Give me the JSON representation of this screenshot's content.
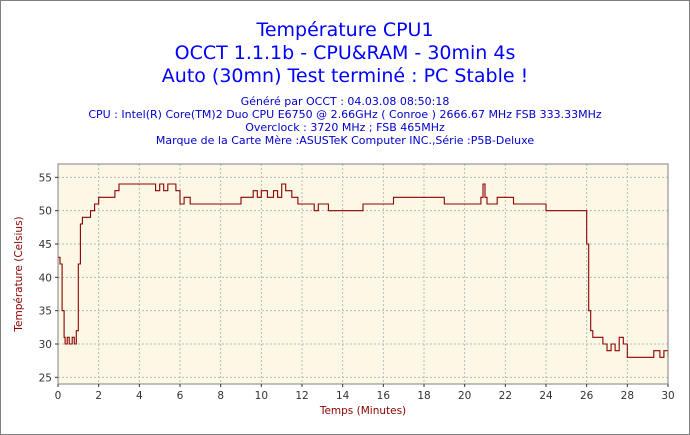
{
  "colors": {
    "title": "#0000ff",
    "info": "#0000cc",
    "plot_background": "#fdf8e6",
    "grid": "#b8b8b8",
    "series": "#8b0000",
    "axis_title": "#8b0000"
  },
  "header": {
    "title_lines": [
      "Température CPU1",
      "OCCT 1.1.1b - CPU&RAM - 30min 4s",
      "Auto (30mn) Test terminé : PC Stable !"
    ],
    "info_lines": [
      "Généré par OCCT : 04.03.08 08:50:18",
      "CPU : Intel(R) Core(TM)2 Duo CPU E6750 @ 2.66GHz ( Conroe ) 2666.67 MHz FSB 333.33MHz",
      "Overclock : 3720 MHz ; FSB 465MHz",
      "Marque de la Carte Mère :ASUSTeK Computer INC.,Série :P5B-Deluxe"
    ]
  },
  "chart_data": {
    "type": "line",
    "xlabel": "Temps (Minutes)",
    "ylabel": "Température (Celsius)",
    "xlim": [
      0,
      30
    ],
    "ylim": [
      24,
      57
    ],
    "xticks": [
      0,
      2,
      4,
      6,
      8,
      10,
      12,
      14,
      16,
      18,
      20,
      22,
      24,
      26,
      28,
      30
    ],
    "yticks": [
      25,
      30,
      35,
      40,
      45,
      50,
      55
    ],
    "grid": true,
    "series": [
      {
        "x": [
          0,
          0.1,
          0.2,
          0.3,
          0.35,
          0.45,
          0.55,
          0.6,
          0.7,
          0.8,
          0.9,
          1.0,
          1.1,
          1.2,
          1.4,
          1.6,
          1.8,
          2.0,
          2.2,
          2.5,
          2.8,
          3.0,
          3.5,
          4.0,
          4.5,
          4.8,
          5.0,
          5.2,
          5.4,
          5.6,
          5.8,
          6.0,
          6.2,
          6.5,
          7.0,
          7.5,
          8.0,
          8.5,
          9.0,
          9.4,
          9.6,
          9.8,
          10.0,
          10.3,
          10.6,
          10.8,
          11.0,
          11.2,
          11.5,
          11.8,
          12.0,
          12.3,
          12.6,
          12.8,
          13.0,
          13.3,
          13.5,
          14.0,
          14.5,
          15.0,
          15.5,
          16.0,
          16.5,
          17.0,
          17.5,
          18.0,
          18.5,
          19.0,
          19.3,
          19.6,
          20.0,
          20.3,
          20.6,
          20.8,
          20.9,
          21.0,
          21.1,
          21.3,
          21.6,
          22.0,
          22.4,
          22.8,
          23.2,
          23.6,
          24.0,
          24.5,
          25.0,
          25.5,
          25.9,
          26.0,
          26.1,
          26.2,
          26.3,
          26.5,
          26.8,
          27.0,
          27.2,
          27.4,
          27.6,
          27.8,
          28.0,
          28.2,
          28.5,
          28.8,
          29.0,
          29.3,
          29.6,
          29.8,
          30.0
        ],
        "y": [
          43,
          42,
          35,
          31,
          30,
          31,
          30,
          30,
          31,
          30,
          32,
          42,
          48,
          49,
          49,
          50,
          51,
          52,
          52,
          52,
          53,
          54,
          54,
          54,
          54,
          53,
          54,
          53,
          54,
          54,
          53,
          51,
          52,
          51,
          51,
          51,
          51,
          51,
          52,
          52,
          53,
          52,
          53,
          52,
          53,
          52,
          54,
          53,
          52,
          51,
          51,
          51,
          50,
          51,
          51,
          50,
          50,
          50,
          50,
          51,
          51,
          51,
          52,
          52,
          52,
          52,
          52,
          51,
          51,
          51,
          51,
          51,
          51,
          52,
          54,
          52,
          51,
          51,
          52,
          52,
          51,
          51,
          51,
          51,
          50,
          50,
          50,
          50,
          50,
          45,
          35,
          32,
          31,
          31,
          30,
          29,
          30,
          29,
          31,
          30,
          28,
          28,
          28,
          28,
          28,
          29,
          28,
          29,
          28
        ]
      }
    ]
  }
}
